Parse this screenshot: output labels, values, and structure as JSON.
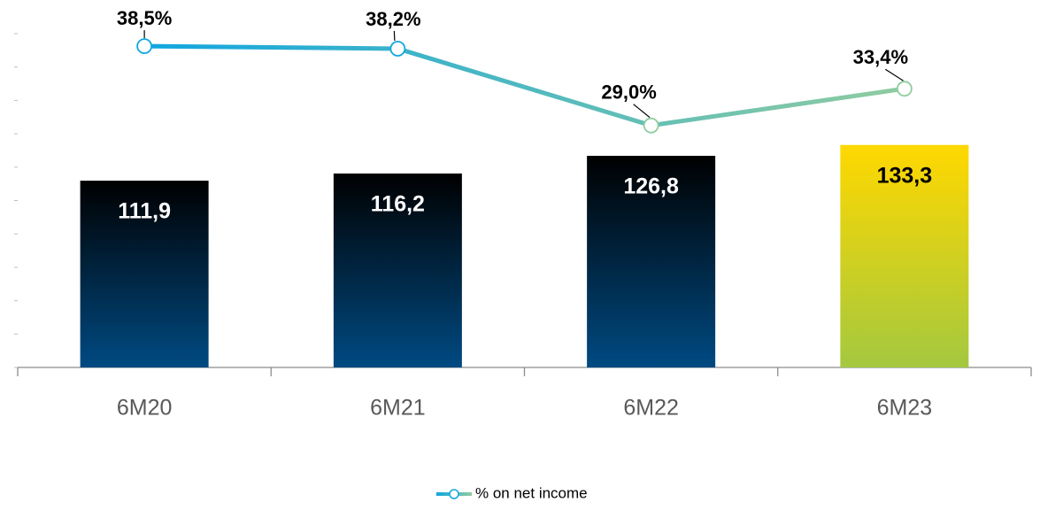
{
  "chart_data": {
    "type": "bar-line",
    "categories": [
      "6M20",
      "6M21",
      "6M22",
      "6M23"
    ],
    "series": [
      {
        "type": "bar",
        "values": [
          111.9,
          116.2,
          126.8,
          133.3
        ],
        "value_labels": [
          "111,9",
          "116,2",
          "126,8",
          "133,3"
        ],
        "gradients": [
          [
            "#000000",
            "#004a82"
          ],
          [
            "#000000",
            "#004a82"
          ],
          [
            "#000000",
            "#004a82"
          ],
          [
            "#ffd800",
            "#a4c83f"
          ]
        ],
        "label_colors": [
          "#ffffff",
          "#ffffff",
          "#ffffff",
          "#000000"
        ]
      },
      {
        "type": "line",
        "name": "% on net income",
        "axis": "y2",
        "color": [
          "#11a6e0",
          "#8fcca0"
        ],
        "values": [
          38.5,
          38.2,
          29.0,
          33.4
        ],
        "value_labels": [
          "38,5%",
          "38,2%",
          "29,0%",
          "33,4%"
        ]
      }
    ],
    "ylim": [
      0,
      200
    ],
    "yticks": [
      0,
      20,
      40,
      60,
      80,
      100,
      120,
      140,
      160,
      180,
      200
    ],
    "y2lim": [
      0,
      40
    ],
    "legend": "bottom"
  }
}
